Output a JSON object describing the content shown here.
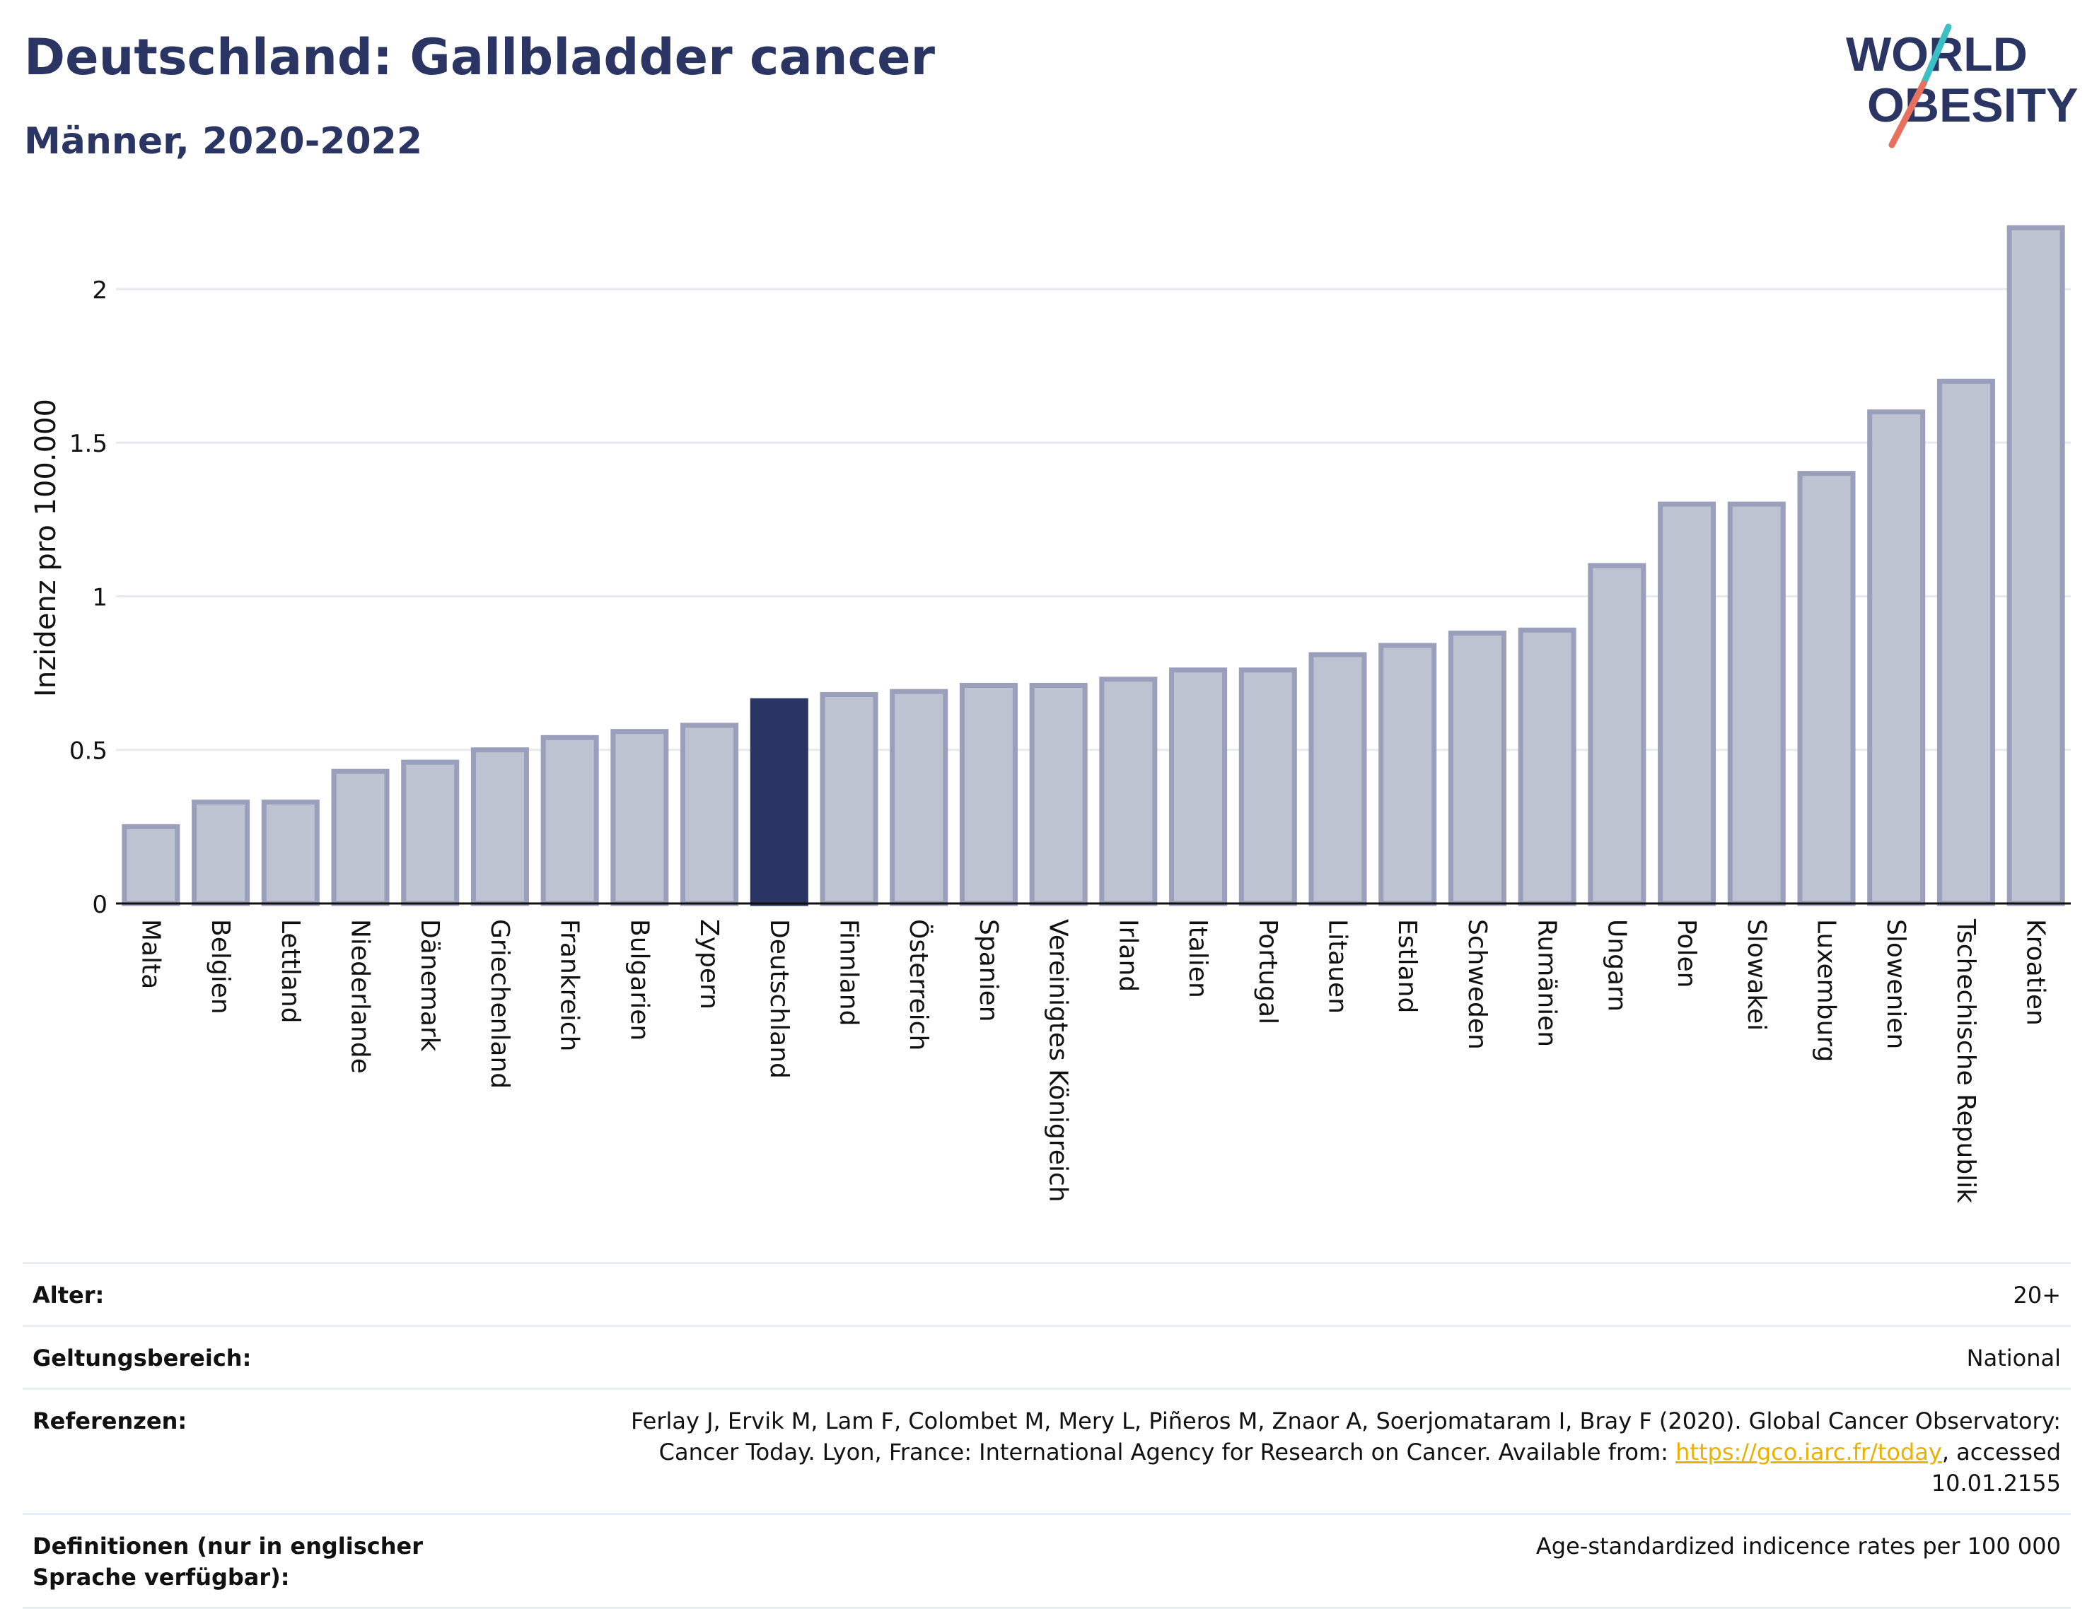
{
  "header": {
    "title": "Deutschland: Gallbladder cancer",
    "subtitle": "Männer, 2020-2022"
  },
  "logo": {
    "line1": "WORLD",
    "line2": "OBESITY"
  },
  "colors": {
    "bar": "#bec3d1",
    "bar_border": "#9a9fbb",
    "highlight": "#2a3563",
    "brand": "#2a3563",
    "accent_teal": "#3bbfc4",
    "accent_coral": "#e8705e"
  },
  "chart_data": {
    "type": "bar",
    "ylabel": "Inzidenz pro 100.000",
    "ylim": [
      0,
      2.2
    ],
    "yticks": [
      0,
      0.5,
      1,
      1.5,
      2
    ],
    "ytick_labels": [
      "0",
      "0.5",
      "1",
      "1.5",
      "2"
    ],
    "grid": true,
    "highlight": "Deutschland",
    "categories": [
      "Malta",
      "Belgien",
      "Lettland",
      "Niederlande",
      "Dänemark",
      "Griechenland",
      "Frankreich",
      "Bulgarien",
      "Zypern",
      "Deutschland",
      "Finnland",
      "Österreich",
      "Spanien",
      "Vereinigtes Königreich",
      "Irland",
      "Italien",
      "Portugal",
      "Litauen",
      "Estland",
      "Schweden",
      "Rumänien",
      "Ungarn",
      "Polen",
      "Slowakei",
      "Luxemburg",
      "Slowenien",
      "Tschechische Republik",
      "Kroatien"
    ],
    "values": [
      0.25,
      0.33,
      0.33,
      0.43,
      0.46,
      0.5,
      0.54,
      0.56,
      0.58,
      0.66,
      0.68,
      0.69,
      0.71,
      0.71,
      0.73,
      0.76,
      0.76,
      0.81,
      0.84,
      0.88,
      0.89,
      1.1,
      1.3,
      1.3,
      1.4,
      1.6,
      1.7,
      2.2
    ]
  },
  "meta": {
    "age_label": "Alter:",
    "age_value": "20+",
    "scope_label": "Geltungsbereich:",
    "scope_value": "National",
    "ref_label": "Referenzen:",
    "ref_text_1": "Ferlay J, Ervik M, Lam F, Colombet M, Mery L, Piñeros M, Znaor A, Soerjomataram I, Bray F (2020). Global Cancer Observatory: Cancer Today. Lyon, France: International Agency for Research on Cancer. Available from: ",
    "ref_link": "https://gco.iarc.fr/today",
    "ref_text_2": ", accessed 10.01.2155",
    "def_label": "Definitionen (nur in englischer Sprache verfügbar):",
    "def_value": "Age-standardized indicence rates per 100 000"
  }
}
